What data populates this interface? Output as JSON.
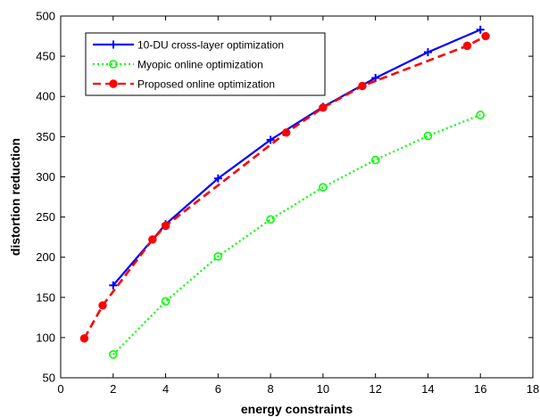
{
  "chart_data": {
    "type": "line",
    "xlabel": "energy constraints",
    "ylabel": "distortion reduction",
    "xlim": [
      0,
      18
    ],
    "ylim": [
      50,
      500
    ],
    "x_ticks": [
      "0",
      "2",
      "4",
      "6",
      "8",
      "10",
      "12",
      "14",
      "16",
      "18"
    ],
    "y_ticks": [
      "50",
      "100",
      "150",
      "200",
      "250",
      "300",
      "350",
      "400",
      "450",
      "500"
    ],
    "x_tick_values": [
      0,
      2,
      4,
      6,
      8,
      10,
      12,
      14,
      16,
      18
    ],
    "y_tick_values": [
      50,
      100,
      150,
      200,
      250,
      300,
      350,
      400,
      450,
      500
    ],
    "grid": false,
    "legend_position": "top-left",
    "series": [
      {
        "name": "10-DU cross-layer optimization",
        "color": "#0000ff",
        "line_style": "solid",
        "marker": "plus",
        "x": [
          2,
          4,
          6,
          8,
          10,
          12,
          14,
          16
        ],
        "y": [
          165,
          241,
          298,
          346,
          387,
          423,
          455,
          483
        ]
      },
      {
        "name": "Myopic  online optimization",
        "color": "#00ff00",
        "line_style": "dotted",
        "marker": "circle",
        "x": [
          2,
          4,
          6,
          8,
          10,
          12,
          14,
          16
        ],
        "y": [
          79,
          145,
          201,
          247,
          287,
          321,
          351,
          377
        ]
      },
      {
        "name": "Proposed online optimization",
        "color": "#ff0000",
        "line_style": "dashed",
        "marker": "filled-circle",
        "x": [
          0.9,
          1.6,
          3.5,
          4.0,
          8.6,
          10.0,
          11.5,
          15.5,
          16.2
        ],
        "y": [
          99,
          140,
          222,
          239,
          355,
          386,
          413,
          463,
          475
        ]
      }
    ]
  }
}
